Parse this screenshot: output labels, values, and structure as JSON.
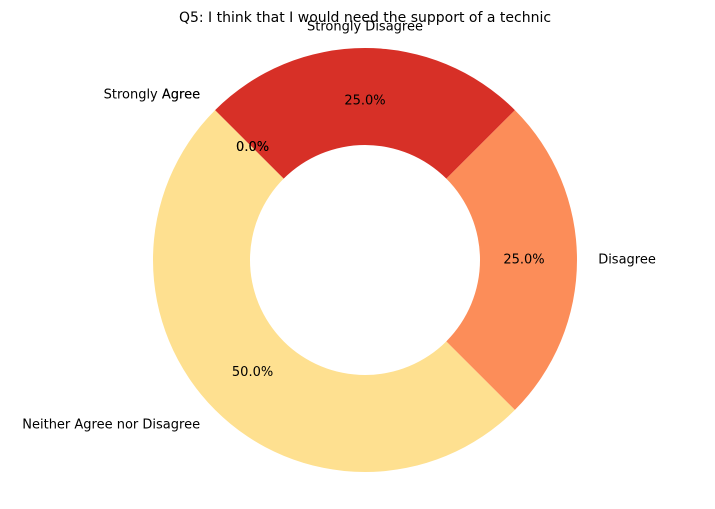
{
  "chart_data": {
    "type": "pie",
    "style": "donut",
    "title": "Q5: I think that I would need the support of a technic",
    "categories": [
      "Strongly Agree",
      "Agree",
      "Neither Agree nor Disagree",
      "Disagree",
      "Strongly Disagree"
    ],
    "values": [
      0.0,
      0.0,
      50.0,
      25.0,
      25.0
    ],
    "percent_labels": [
      "0.0%",
      "0.0%",
      "50.0%",
      "25.0%",
      "25.0%"
    ],
    "colors": [
      "#fee090",
      "#fee090",
      "#fee090",
      "#fc8d59",
      "#d73027"
    ],
    "legend": "none"
  }
}
